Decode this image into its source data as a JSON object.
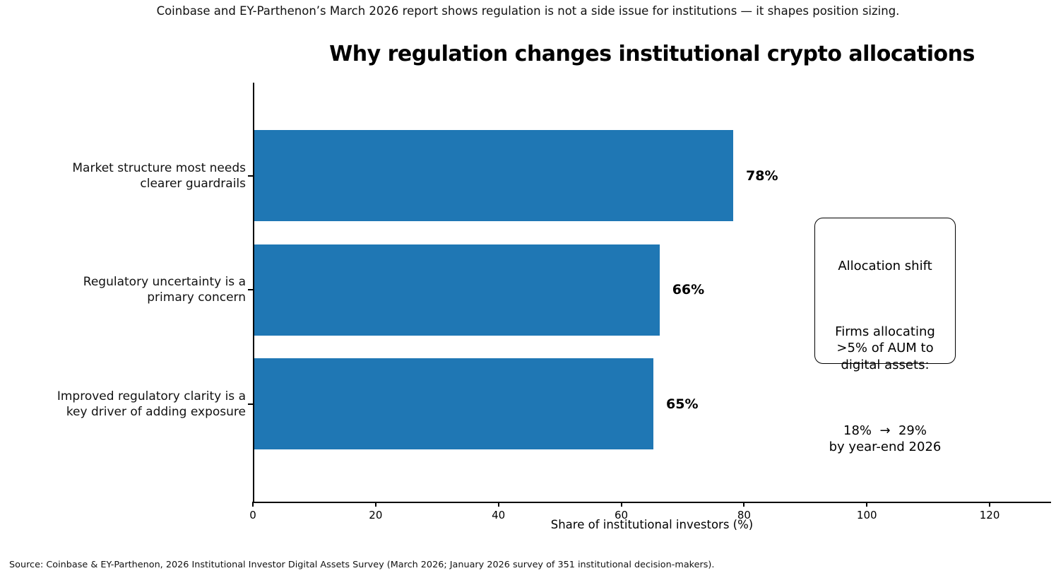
{
  "figure": {
    "caption": "Coinbase and EY-Parthenon’s March 2026 report shows regulation is not a side issue for institutions — it shapes position sizing.",
    "source": "Source: Coinbase & EY-Parthenon, 2026 Institutional Investor Digital Assets Survey (March 2026; January 2026 survey of 351 institutional decision-makers)."
  },
  "chart_data": {
    "type": "bar",
    "orientation": "horizontal",
    "title": "Why regulation changes institutional crypto allocations",
    "xlabel": "Share of institutional investors (%)",
    "ylabel": "",
    "categories": [
      "Market structure most needs\nclearer guardrails",
      "Regulatory uncertainty is a\nprimary concern",
      "Improved regulatory clarity is a\nkey driver of adding exposure"
    ],
    "values": [
      78,
      66,
      65
    ],
    "value_labels": [
      "78%",
      "66%",
      "65%"
    ],
    "xlim": [
      0,
      130
    ],
    "xticks": [
      0,
      20,
      40,
      60,
      80,
      100,
      120
    ],
    "bar_color": "#1f77b4",
    "grid": false,
    "legend": false
  },
  "annotation": {
    "title": "Allocation shift",
    "body": "Firms allocating\n>5% of AUM to\ndigital assets:",
    "stat": "18%  →  29%\nby year-end 2026"
  }
}
